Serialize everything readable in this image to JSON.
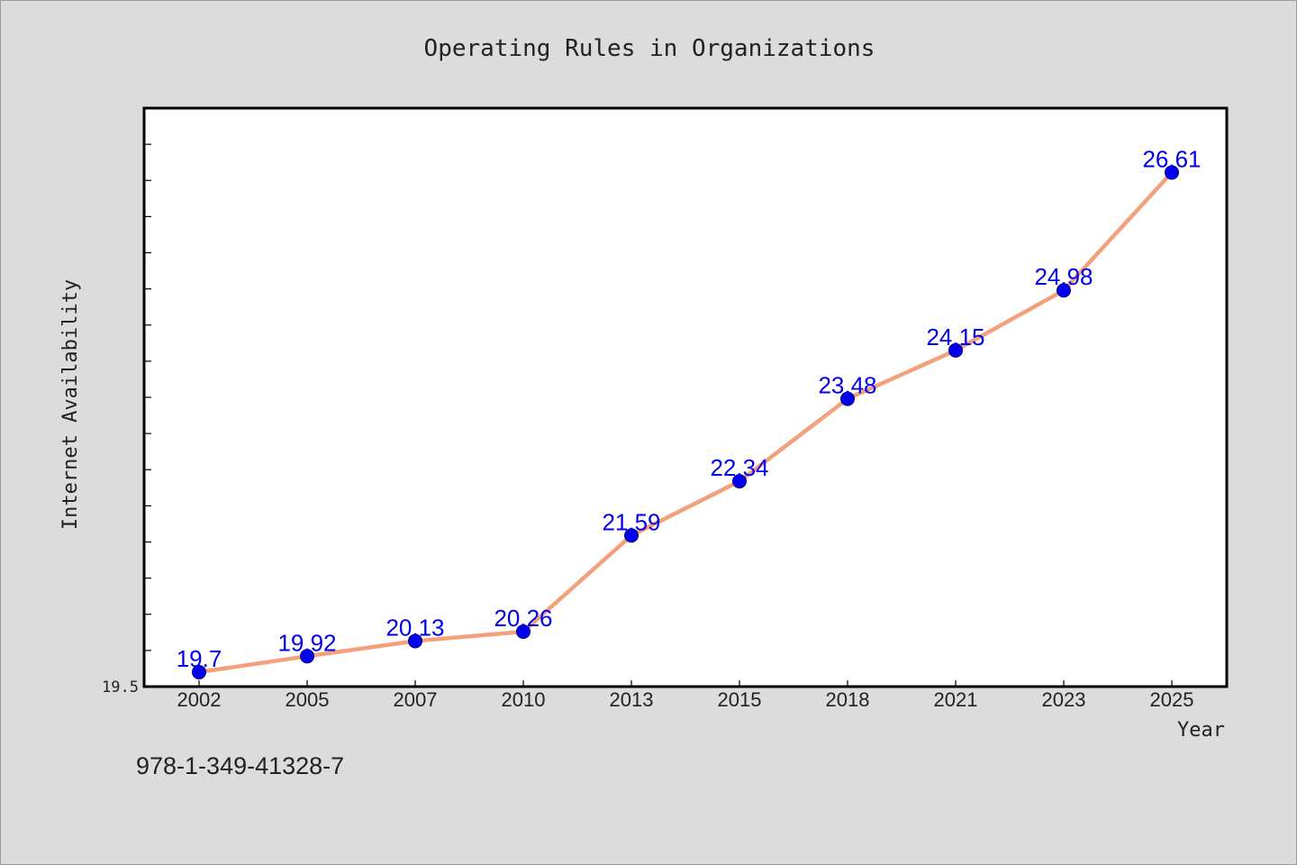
{
  "chart_data": {
    "type": "line",
    "title": "Operating Rules in Organizations",
    "xlabel": "Year",
    "ylabel": "Internet Availability",
    "categories": [
      "2002",
      "2005",
      "2007",
      "2010",
      "2013",
      "2015",
      "2018",
      "2021",
      "2023",
      "2025"
    ],
    "series": [
      {
        "values": [
          19.7,
          19.92,
          20.13,
          20.26,
          21.59,
          22.34,
          23.48,
          24.15,
          24.98,
          26.61
        ],
        "data_labels": [
          "19.7",
          "19.92",
          "20.13",
          "20.26",
          "21.59",
          "22.34",
          "23.48",
          "24.15",
          "24.98",
          "26.61"
        ]
      }
    ],
    "ytick_labels": [
      "19.5"
    ],
    "ylim": [
      19.5,
      27.5
    ],
    "grid": false,
    "legend": "none",
    "colors": {
      "line": "#f4a07c",
      "marker": "#0000ee",
      "data_label": "#0000ee",
      "plot_background": "#ffffff",
      "figure_background": "#dcdcdc"
    }
  },
  "footer": {
    "isbn": "978-1-349-41328-7"
  }
}
